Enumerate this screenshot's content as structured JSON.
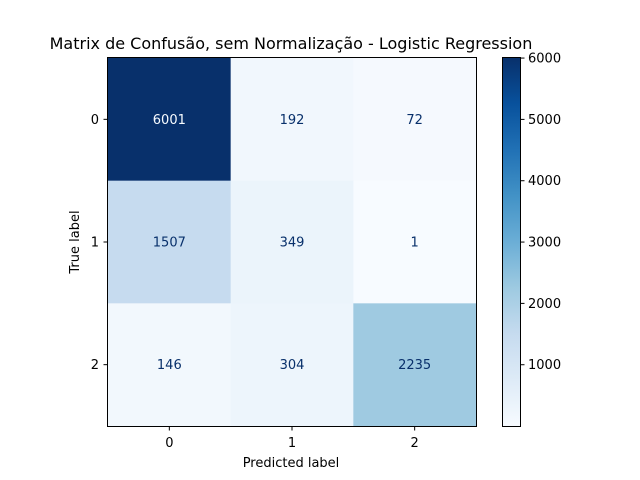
{
  "chart_data": {
    "type": "heatmap",
    "title": "Matrix de Confusão, sem Normalização - Logistic Regression",
    "xlabel": "Predicted label",
    "ylabel": "True label",
    "x_categories": [
      "0",
      "1",
      "2"
    ],
    "y_categories": [
      "0",
      "1",
      "2"
    ],
    "values": [
      [
        6001,
        192,
        72
      ],
      [
        1507,
        349,
        1
      ],
      [
        146,
        304,
        2235
      ]
    ],
    "colormap": "Blues",
    "colorbar": {
      "ticks": [
        1000,
        2000,
        3000,
        4000,
        5000,
        6000
      ],
      "range": [
        1,
        6001
      ]
    },
    "grid": false
  }
}
